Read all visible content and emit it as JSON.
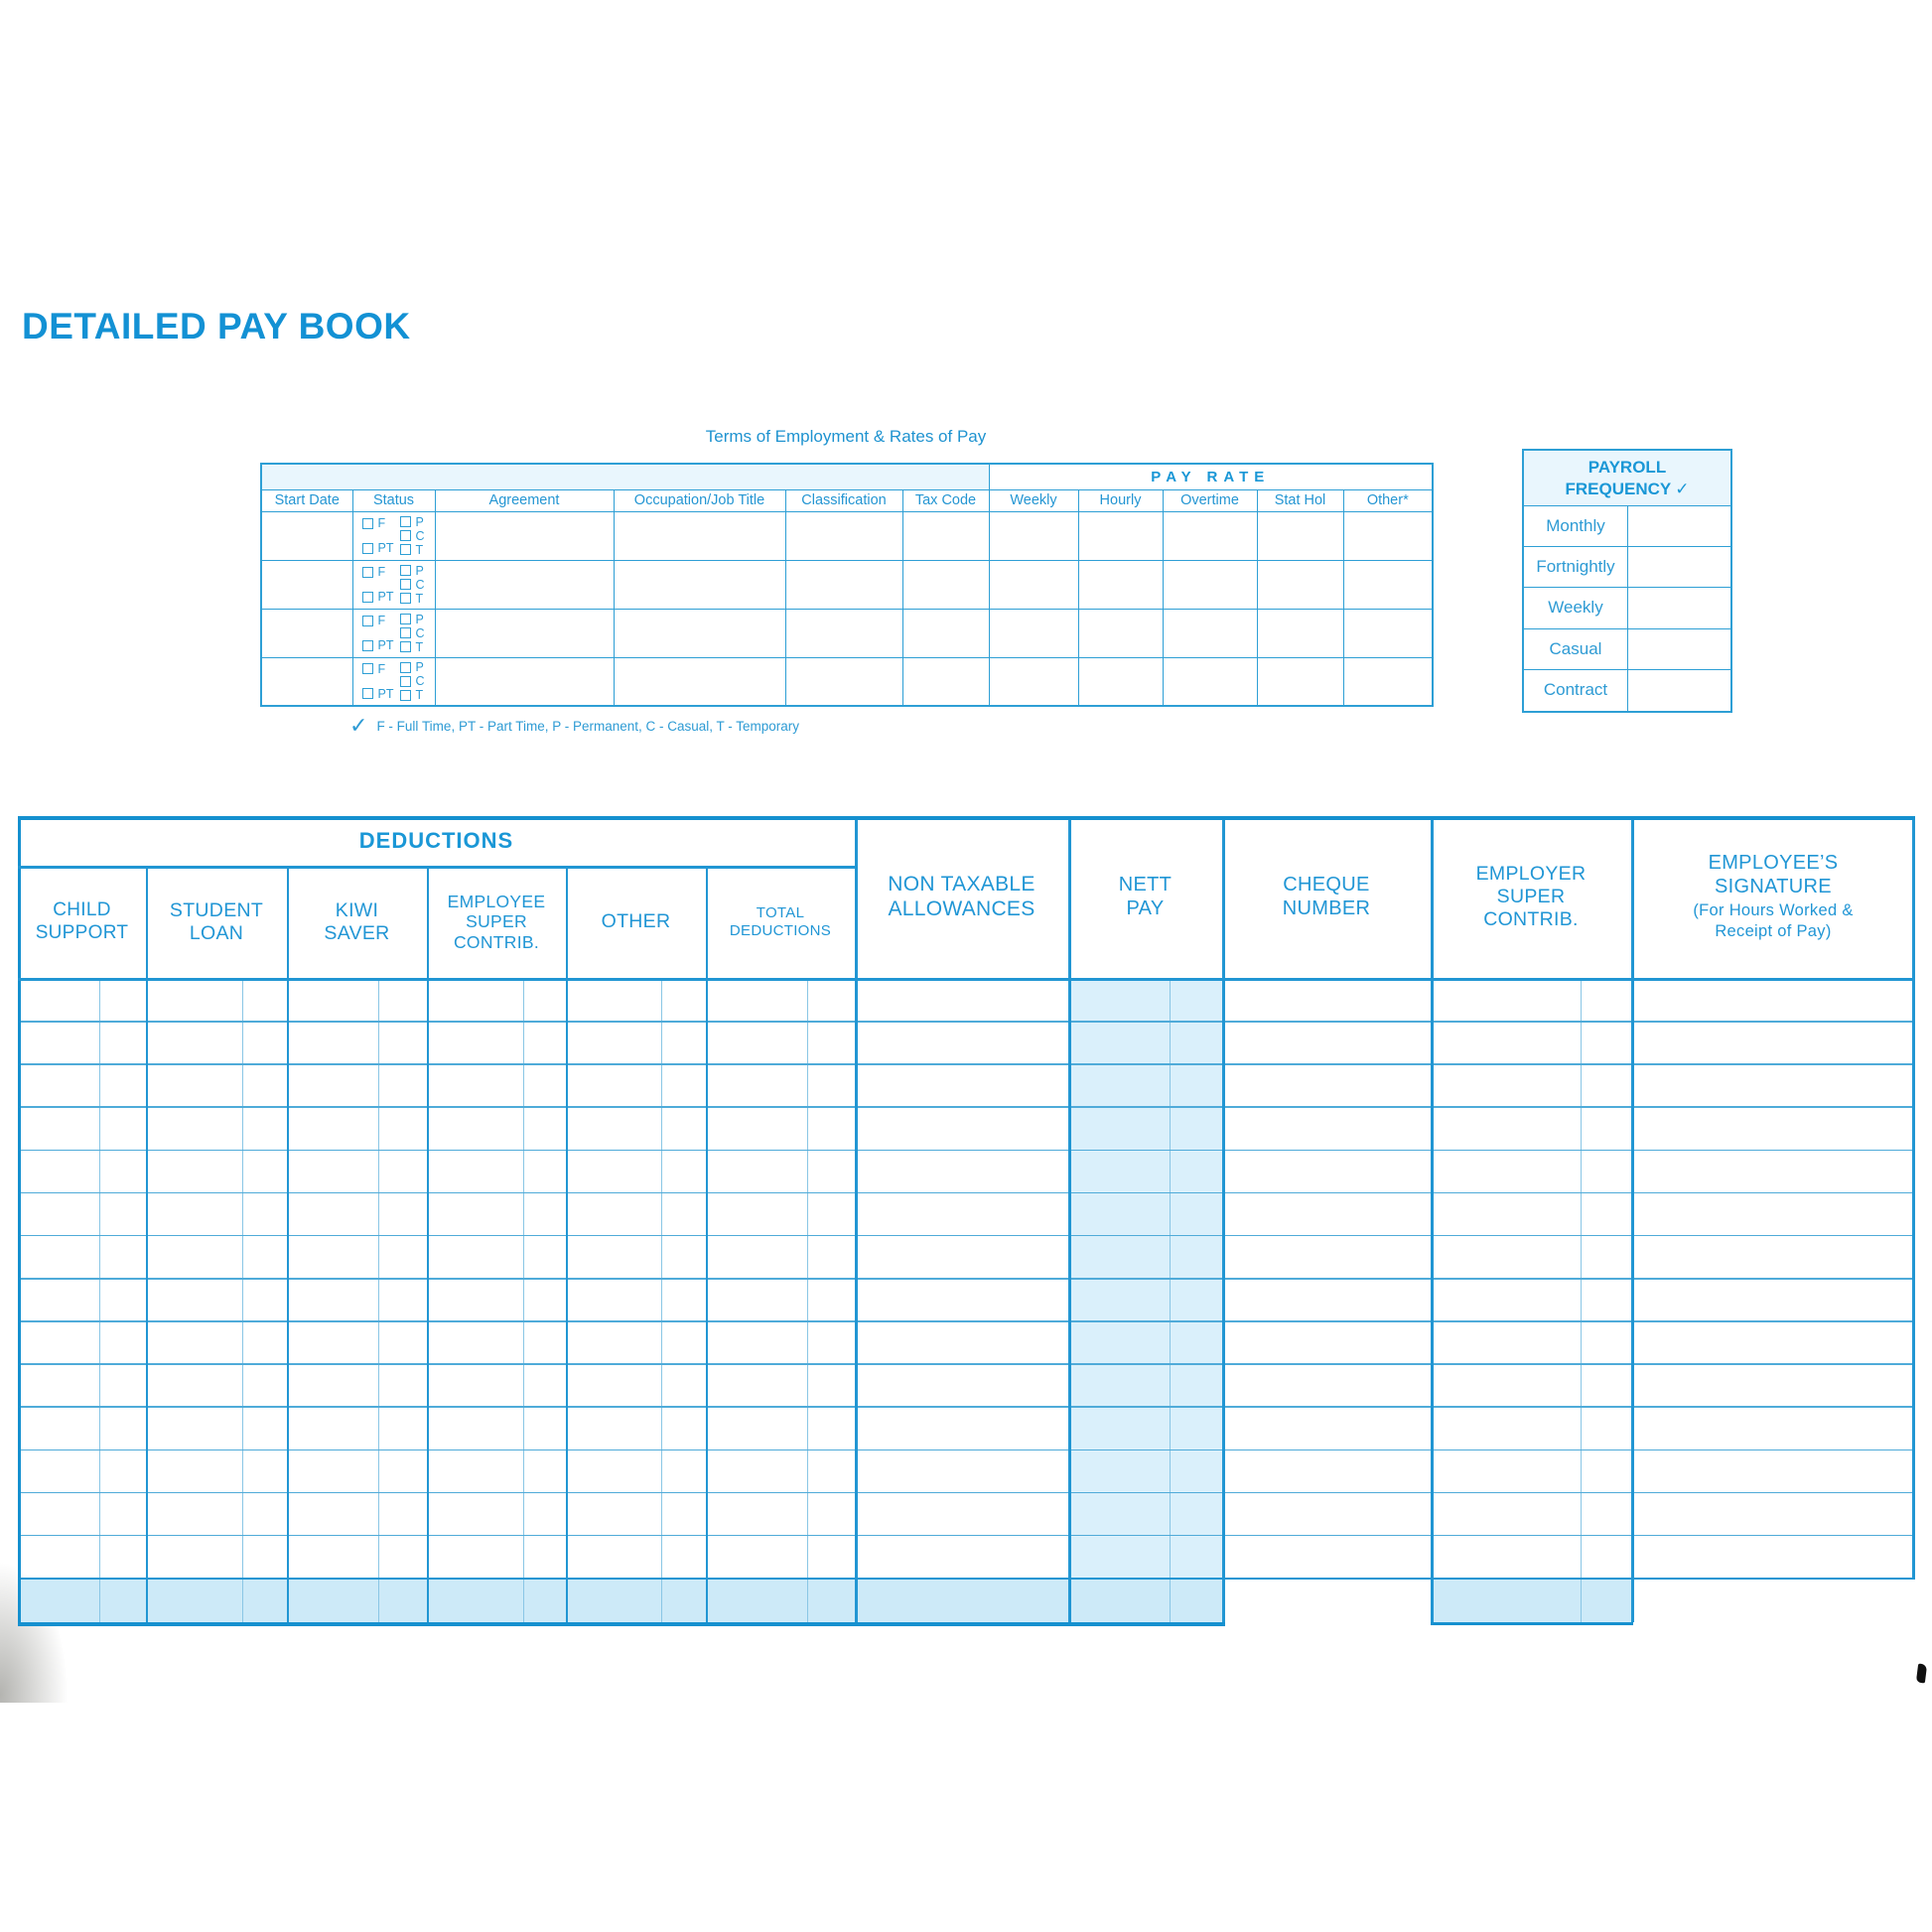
{
  "page": {
    "title": "DETAILED PAY BOOK"
  },
  "terms": {
    "title": "Terms of Employment & Rates of Pay",
    "group_header": "PAY RATE",
    "columns": [
      "Start Date",
      "Status",
      "Agreement",
      "Occupation/Job Title",
      "Classification",
      "Tax Code",
      "Weekly",
      "Hourly",
      "Overtime",
      "Stat Hol",
      "Other*"
    ],
    "status_left": [
      "F",
      "PT"
    ],
    "status_right": [
      "P",
      "C",
      "T"
    ],
    "row_count": 4,
    "footnote_check": "✓",
    "footnote": "F - Full Time, PT - Part Time, P - Permanent, C - Casual, T - Temporary"
  },
  "payroll_frequency": {
    "title": "PAYROLL",
    "title2": "FREQUENCY",
    "check": "✓",
    "options": [
      "Monthly",
      "Fortnightly",
      "Weekly",
      "Casual",
      "Contract"
    ]
  },
  "pay_table": {
    "group_header": "DEDUCTIONS",
    "columns": [
      {
        "id": "child-support",
        "label": "CHILD\nSUPPORT"
      },
      {
        "id": "student-loan",
        "label": "STUDENT\nLOAN"
      },
      {
        "id": "kiwi-saver",
        "label": "KIWI\nSAVER"
      },
      {
        "id": "employee-super-contrib",
        "label": "EMPLOYEE\nSUPER\nCONTRIB."
      },
      {
        "id": "other",
        "label": "OTHER"
      },
      {
        "id": "total-deductions",
        "label": "TOTAL\nDEDUCTIONS"
      },
      {
        "id": "non-taxable-allowances",
        "label": "NON TAXABLE\nALLOWANCES"
      },
      {
        "id": "nett-pay",
        "label": "NETT\nPAY"
      },
      {
        "id": "cheque-number",
        "label": "CHEQUE\nNUMBER"
      },
      {
        "id": "employer-super-contrib",
        "label": "EMPLOYER\nSUPER\nCONTRIB."
      },
      {
        "id": "employees-signature",
        "label": "EMPLOYEE’S\nSIGNATURE",
        "sublabel": "(For Hours Worked &\nReceipt of Pay)"
      }
    ],
    "body_row_count": 14
  },
  "colors": {
    "ink_bold": "#1a97d6",
    "ink": "#2496d3",
    "grid_major": "#2196d3",
    "grid_thin": "#4fabd9",
    "tint_header": "#e9f6fd",
    "nett_pay_shade": "#daf0fb",
    "totals_row_shade": "#cdeaf8"
  }
}
